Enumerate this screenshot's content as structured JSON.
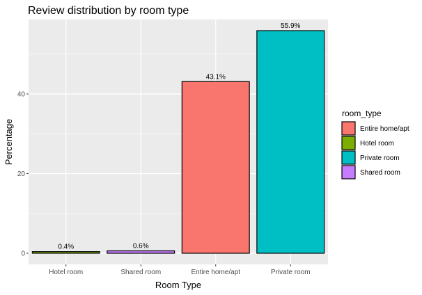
{
  "chart_data": {
    "type": "bar",
    "title": "Review distribution by room type",
    "xlabel": "Room Type",
    "ylabel": "Percentage",
    "categories": [
      "Hotel room",
      "Shared room",
      "Entire home/apt",
      "Private room"
    ],
    "values": [
      0.4,
      0.6,
      43.1,
      55.9
    ],
    "data_labels": [
      "0.4%",
      "0.6%",
      "43.1%",
      "55.9%"
    ],
    "colors": [
      "#7CAE00",
      "#C77CFF",
      "#F8766D",
      "#00BFC4"
    ],
    "ylim": [
      -2.8,
      58.7
    ],
    "yticks": [
      0,
      20,
      40
    ],
    "grid": true,
    "legend": {
      "title": "room_type",
      "position": "right",
      "entries": [
        {
          "label": "Entire home/apt",
          "color": "#F8766D"
        },
        {
          "label": "Hotel room",
          "color": "#7CAE00"
        },
        {
          "label": "Private room",
          "color": "#00BFC4"
        },
        {
          "label": "Shared room",
          "color": "#C77CFF"
        }
      ]
    }
  }
}
